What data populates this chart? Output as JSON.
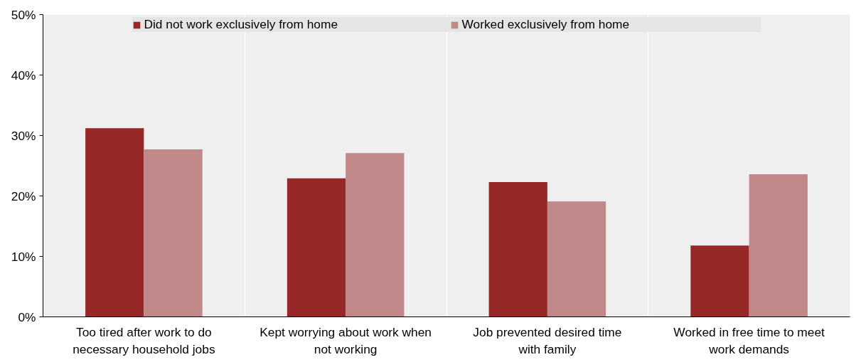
{
  "chart_data": {
    "type": "bar",
    "categories": [
      "Too tired after work to do necessary household jobs",
      "Kept worrying about work when not working",
      "Job prevented desired time with family",
      "Worked in free time to meet work demands"
    ],
    "series": [
      {
        "name": "Did not work exclusively from home",
        "color": "#962828",
        "values": [
          31.2,
          22.9,
          22.3,
          11.8
        ]
      },
      {
        "name": "Worked exclusively from home",
        "color": "#c08888",
        "values": [
          27.7,
          27.1,
          19.1,
          23.6
        ]
      }
    ],
    "ylim": [
      0,
      50
    ],
    "yticks": [
      {
        "value": 0,
        "label": "0%"
      },
      {
        "value": 10,
        "label": "10%"
      },
      {
        "value": 20,
        "label": "20%"
      },
      {
        "value": 30,
        "label": "30%"
      },
      {
        "value": 40,
        "label": "40%"
      },
      {
        "value": 50,
        "label": "50%"
      }
    ],
    "grid": "x",
    "legend": "top"
  }
}
